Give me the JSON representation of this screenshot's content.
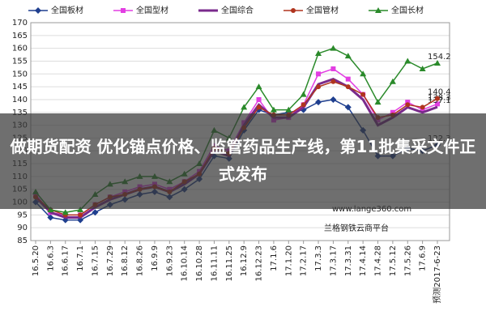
{
  "chart_data": {
    "type": "line",
    "banner": "做期货配资 优化锚点价格、监管药品生产线，第11批集采文件正式发布",
    "annotations": [
      "www.lange360.com",
      "兰格钢铁云商平台"
    ],
    "categories": [
      "16.5.20",
      "16.6.3",
      "16.6.17",
      "16.7.1",
      "16.7.15",
      "16.7.29",
      "16.8.12",
      "16.8.26",
      "16.9.9",
      "16.9.23",
      "16.10.14",
      "16.10.28",
      "16.11.11",
      "16.11.25",
      "16.12.9",
      "16.12.23",
      "17.1.6",
      "17.1.20",
      "17.2.17",
      "17.3.3",
      "17.3.17",
      "17.3.31",
      "17.4.14",
      "17.4.28",
      "17.5.12",
      "17.5.26",
      "17.6.9",
      "预测2017-6-23"
    ],
    "series": [
      {
        "name": "全国板材",
        "color": "#1f3f8f",
        "marker": "diamond",
        "values": [
          100,
          94,
          93,
          93,
          96,
          99,
          101,
          103,
          104,
          102,
          105,
          109,
          118,
          117,
          128,
          136,
          134,
          135,
          136,
          139,
          140,
          137,
          128,
          118,
          118,
          121,
          120,
          122.3
        ]
      },
      {
        "name": "全国型材",
        "color": "#e23ee2",
        "marker": "square",
        "values": [
          103,
          96,
          95,
          95,
          99,
          102,
          104,
          106,
          107,
          105,
          108,
          112,
          122,
          120,
          131,
          140,
          132,
          133,
          138,
          150,
          152,
          148,
          142,
          132,
          135,
          139,
          136,
          138.3
        ]
      },
      {
        "name": "全国综合",
        "color": "#7a2a8c",
        "marker": "none",
        "values": [
          102,
          96,
          94,
          94,
          98,
          101,
          103,
          105,
          106,
          104,
          107,
          111,
          120,
          118,
          130,
          138,
          133,
          133,
          137,
          146,
          148,
          145,
          140,
          130,
          133,
          137,
          135,
          137.1
        ]
      },
      {
        "name": "全国管材",
        "color": "#b0341e",
        "marker": "circle",
        "values": [
          102,
          97,
          95,
          95,
          99,
          102,
          103,
          105,
          106,
          104,
          108,
          111,
          121,
          119,
          129,
          137,
          134,
          134,
          138,
          145,
          147,
          145,
          142,
          133,
          134,
          138,
          137,
          140.4
        ]
      },
      {
        "name": "全国长材",
        "color": "#2a8a2a",
        "marker": "triangle",
        "values": [
          104,
          97,
          96,
          97,
          103,
          107,
          108,
          110,
          110,
          108,
          111,
          115,
          128,
          125,
          137,
          145,
          136,
          136,
          142,
          158,
          160,
          157,
          150,
          139,
          147,
          155,
          152,
          154.2
        ]
      }
    ],
    "ylim": [
      85,
      170
    ],
    "yticks": [
      85,
      90,
      95,
      100,
      105,
      110,
      115,
      120,
      125,
      130,
      135,
      140,
      145,
      150,
      155,
      160,
      165,
      170
    ],
    "grid": true
  }
}
